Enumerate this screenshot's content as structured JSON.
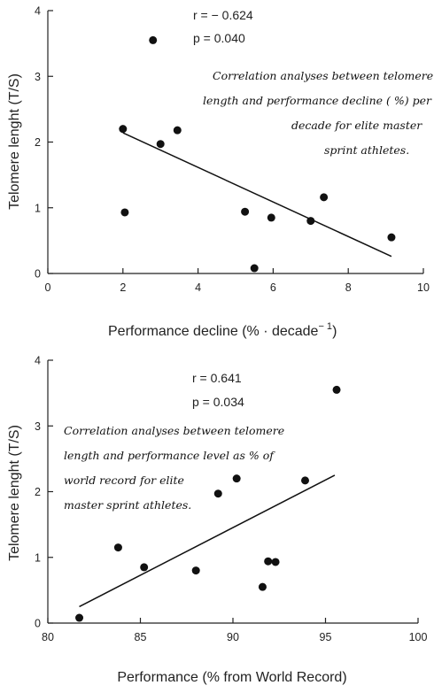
{
  "chart_data": [
    {
      "type": "scatter",
      "xlabel": "Performance decline (% · decade",
      "xlabel_sup": "− 1",
      "xlabel_close": ")",
      "ylabel": "Telomere lenght (T/S)",
      "xlim": [
        0,
        10
      ],
      "ylim": [
        0,
        4
      ],
      "xticks": [
        "0",
        "2",
        "4",
        "6",
        "8",
        "10"
      ],
      "yticks": [
        "0",
        "1",
        "2",
        "3",
        "4"
      ],
      "stat_r": "r = − 0.624",
      "stat_p": "p = 0.040",
      "annotation": [
        "Correlation analyses between telomere",
        "length and performance decline ( %) per",
        "decade for elite master",
        "sprint athletes."
      ],
      "x": [
        2.8,
        2.0,
        3.0,
        3.45,
        2.05,
        5.25,
        5.95,
        7.35,
        7.0,
        9.15,
        5.5
      ],
      "y": [
        3.55,
        2.2,
        1.97,
        2.18,
        0.93,
        0.94,
        0.85,
        1.16,
        0.8,
        0.55,
        0.08
      ],
      "trendline": {
        "x": [
          2.0,
          9.15
        ],
        "y": [
          2.14,
          0.26
        ]
      }
    },
    {
      "type": "scatter",
      "xlabel": "Performance (% from World Record)",
      "ylabel": "Telomere lenght (T/S)",
      "xlim": [
        80,
        100
      ],
      "ylim": [
        0,
        4
      ],
      "xticks": [
        "80",
        "85",
        "90",
        "95",
        "100"
      ],
      "yticks": [
        "0",
        "1",
        "2",
        "3",
        "4"
      ],
      "stat_r": "r = 0.641",
      "stat_p": "p = 0.034",
      "annotation": [
        "Correlation analyses between telomere",
        "length and performance level as % of",
        "world record for elite",
        "master sprint athletes."
      ],
      "x": [
        95.6,
        90.2,
        89.2,
        93.9,
        83.8,
        85.2,
        88.0,
        91.9,
        92.3,
        91.6,
        81.7
      ],
      "y": [
        3.55,
        2.2,
        1.97,
        2.17,
        1.15,
        0.85,
        0.8,
        0.94,
        0.93,
        0.55,
        0.08
      ],
      "trendline": {
        "x": [
          81.7,
          95.5
        ],
        "y": [
          0.25,
          2.25
        ]
      }
    }
  ]
}
